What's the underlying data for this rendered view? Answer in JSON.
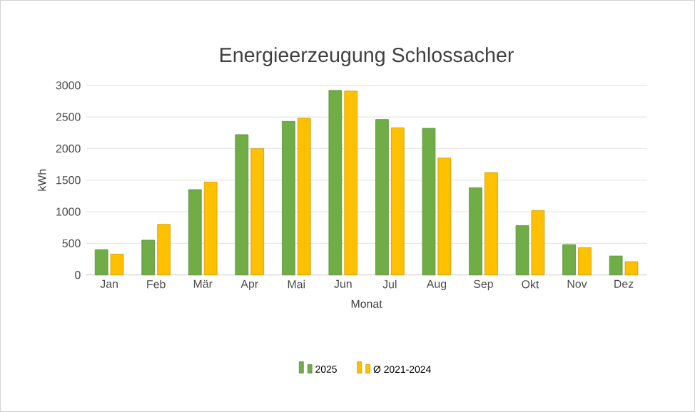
{
  "chart_data": {
    "type": "bar",
    "title": "Energieerzeugung Schlossacher",
    "xlabel": "Monat",
    "ylabel": "kWh",
    "categories": [
      "Jan",
      "Feb",
      "Mär",
      "Apr",
      "Mai",
      "Jun",
      "Jul",
      "Aug",
      "Sep",
      "Okt",
      "Nov",
      "Dez"
    ],
    "series": [
      {
        "name": "2025",
        "color": "#70ad47",
        "values": [
          400,
          550,
          1350,
          2220,
          2430,
          2920,
          2460,
          2320,
          1380,
          780,
          480,
          300
        ]
      },
      {
        "name": "Ø 2021-2024",
        "color": "#ffc000",
        "values": [
          330,
          800,
          1470,
          2000,
          2480,
          2910,
          2330,
          1850,
          1620,
          1020,
          430,
          210
        ]
      }
    ],
    "ylim": [
      0,
      3000
    ],
    "yticks": [
      0,
      500,
      1000,
      1500,
      2000,
      2500,
      3000
    ],
    "grid": "y",
    "legend": "bottom"
  }
}
